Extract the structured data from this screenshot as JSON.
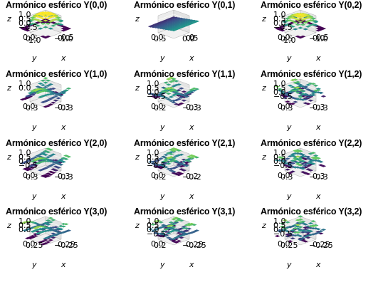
{
  "chart_data": [
    {
      "type": "surface3d",
      "title": "Armónico esférico Y(0,0)",
      "xlabel": "x",
      "ylabel": "y",
      "zlabel": "z",
      "z_ticks": [
        "1.0",
        "0.5",
        "0.0",
        "−0.5"
      ],
      "y_ticks": [
        "0.0",
        "0.5",
        "1.0"
      ],
      "x_ticks": [
        "−1.0",
        "0.0",
        "0.5"
      ],
      "l": 0,
      "m": 0
    },
    {
      "type": "surface3d",
      "title": "Armónico esférico Y(0,1)",
      "xlabel": "x",
      "ylabel": "y",
      "zlabel": "z",
      "z_ticks": [],
      "y_ticks": [
        "0.0",
        "0.5"
      ],
      "x_ticks": [
        "0.0",
        "0.5",
        "0"
      ],
      "l": 0,
      "m": 1
    },
    {
      "type": "surface3d",
      "title": "Armónico esférico Y(0,2)",
      "xlabel": "x",
      "ylabel": "y",
      "zlabel": "z",
      "z_ticks": [
        "1.0",
        "0.5",
        "0.0",
        "−0.5"
      ],
      "y_ticks": [
        "0.0",
        "0.5",
        "1.0"
      ],
      "x_ticks": [
        "−1.0",
        "0.0",
        "0.5"
      ],
      "l": 0,
      "m": 2
    },
    {
      "type": "surface3d",
      "title": "Armónico esférico Y(1,0)",
      "xlabel": "x",
      "ylabel": "y",
      "zlabel": "z",
      "z_ticks": [
        "1.0",
        "0.0"
      ],
      "y_ticks": [
        "0.0",
        "0.3"
      ],
      "x_ticks": [
        "−0.3",
        "0.3"
      ],
      "l": 1,
      "m": 0
    },
    {
      "type": "surface3d",
      "title": "Armónico esférico Y(1,1)",
      "xlabel": "x",
      "ylabel": "y",
      "zlabel": "z",
      "z_ticks": [
        "1.0",
        "0.5",
        "0.0",
        "−0.5"
      ],
      "y_ticks": [
        "0.0",
        "0.2"
      ],
      "x_ticks": [
        "−0.3",
        "0.3"
      ],
      "l": 1,
      "m": 1
    },
    {
      "type": "surface3d",
      "title": "Armónico esférico Y(1,2)",
      "xlabel": "x",
      "ylabel": "y",
      "zlabel": "z",
      "z_ticks": [
        "1.0",
        "0.5",
        "0.0",
        "−0.5"
      ],
      "y_ticks": [
        "0.0",
        "0.3"
      ],
      "x_ticks": [
        "−0.3",
        "0.3"
      ],
      "l": 1,
      "m": 2
    },
    {
      "type": "surface3d",
      "title": "Armónico esférico Y(2,0)",
      "xlabel": "x",
      "ylabel": "y",
      "zlabel": "z",
      "z_ticks": [
        "1.0",
        "0.5",
        "0.0",
        "−0.5"
      ],
      "y_ticks": [
        "0.0",
        "0.3"
      ],
      "x_ticks": [
        "−0.3",
        "0.3"
      ],
      "l": 2,
      "m": 0
    },
    {
      "type": "surface3d",
      "title": "Armónico esférico Y(2,1)",
      "xlabel": "x",
      "ylabel": "y",
      "zlabel": "z",
      "z_ticks": [
        "1.0",
        "0.5",
        "0.0",
        "−0.5"
      ],
      "y_ticks": [
        "0.0",
        "0.2"
      ],
      "x_ticks": [
        "−0.2",
        "0.2"
      ],
      "l": 2,
      "m": 1
    },
    {
      "type": "surface3d",
      "title": "Armónico esférico Y(2,2)",
      "xlabel": "x",
      "ylabel": "y",
      "zlabel": "z",
      "z_ticks": [
        "1.0",
        "0.5",
        "0.0",
        "−0.5"
      ],
      "y_ticks": [
        "0.0",
        "0.3"
      ],
      "x_ticks": [
        "−0.3",
        "0.3"
      ],
      "l": 2,
      "m": 2
    },
    {
      "type": "surface3d",
      "title": "Armónico esférico Y(3,0)",
      "xlabel": "x",
      "ylabel": "y",
      "zlabel": "z",
      "z_ticks": [
        "1.0",
        "0.5",
        "0.0"
      ],
      "y_ticks": [
        "0.0",
        "0.25"
      ],
      "x_ticks": [
        "−0.25",
        "0.25"
      ],
      "l": 3,
      "m": 0
    },
    {
      "type": "surface3d",
      "title": "Armónico esférico Y(3,1)",
      "xlabel": "x",
      "ylabel": "y",
      "zlabel": "z",
      "z_ticks": [
        "1.0",
        "0.5",
        "0.0",
        "−0.5"
      ],
      "y_ticks": [
        "0.0",
        "0.2"
      ],
      "x_ticks": [
        "−0.25",
        "0.25"
      ],
      "l": 3,
      "m": 1
    },
    {
      "type": "surface3d",
      "title": "Armónico esférico Y(3,2)",
      "xlabel": "x",
      "ylabel": "y",
      "zlabel": "z",
      "z_ticks": [
        "1.0",
        "0.5",
        "0.0",
        "−0.5"
      ],
      "y_ticks": [
        "0.0",
        "0.25"
      ],
      "x_ticks": [
        "−0.25",
        "0.25"
      ],
      "l": 3,
      "m": 2
    }
  ]
}
